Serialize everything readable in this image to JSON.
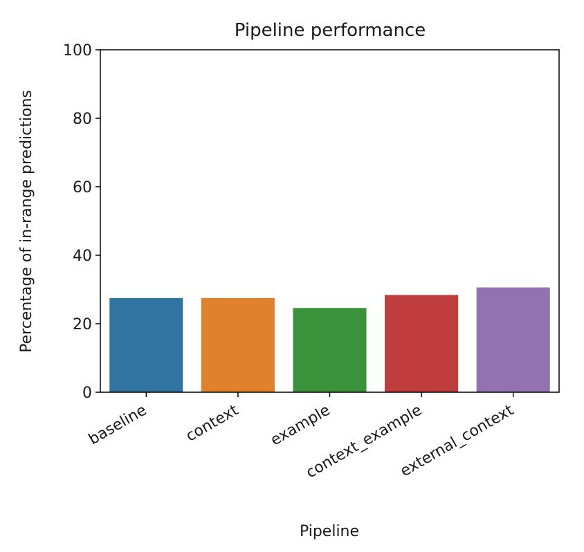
{
  "chart_data": {
    "type": "bar",
    "title": "Pipeline performance",
    "xlabel": "Pipeline",
    "ylabel": "Percentage of in-range predictions",
    "categories": [
      "baseline",
      "context",
      "example",
      "context_example",
      "external_context"
    ],
    "values": [
      27.5,
      27.5,
      24.6,
      28.4,
      30.6
    ],
    "colors": [
      "#3274a1",
      "#e1812c",
      "#3a923a",
      "#c03d3e",
      "#9372b2"
    ],
    "ylim": [
      0,
      100
    ],
    "yticks": [
      0,
      20,
      40,
      60,
      80,
      100
    ],
    "ytick_labels": [
      "0",
      "20",
      "40",
      "60",
      "80",
      "100"
    ],
    "grid": false,
    "legend": "none"
  }
}
